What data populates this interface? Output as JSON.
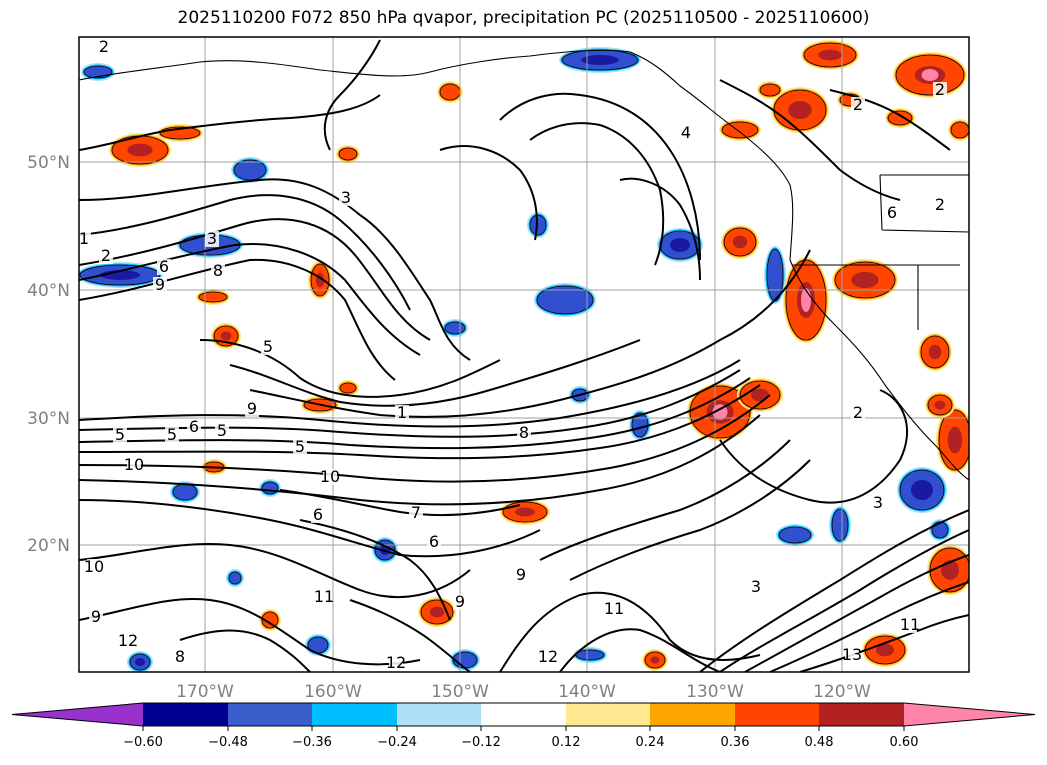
{
  "title": "2025110200 F072 850 hPa qvapor, precipitation PC (2025110500 - 2025110600)",
  "map": {
    "lat_labels": [
      "50°N",
      "40°N",
      "30°N",
      "20°N"
    ],
    "lon_labels": [
      "170°W",
      "160°W",
      "150°W",
      "140°W",
      "130°W",
      "120°W"
    ],
    "contour_labels": [
      "2",
      "3",
      "1",
      "2",
      "6",
      "8",
      "9",
      "5",
      "3",
      "1",
      "9",
      "8",
      "5",
      "5",
      "5",
      "6",
      "5",
      "10",
      "10",
      "6",
      "7",
      "6",
      "9",
      "9",
      "11",
      "10",
      "12",
      "8",
      "9",
      "12",
      "11",
      "3",
      "12",
      "11",
      "13",
      "2",
      "2",
      "4",
      "6",
      "2",
      "2",
      "3"
    ],
    "colors": {
      "negative": [
        "#1a1aa0",
        "#3050d0",
        "#00bfff",
        "#aee0fa"
      ],
      "positive": [
        "#ffe890",
        "#ffa500",
        "#ff4500",
        "#b22222",
        "#ff85a8"
      ]
    }
  },
  "colorbar": {
    "ticks": [
      "−0.60",
      "−0.48",
      "−0.36",
      "−0.24",
      "−0.12",
      "0.12",
      "0.24",
      "0.36",
      "0.48",
      "0.60"
    ],
    "colors": [
      "#9932cc",
      "#000090",
      "#3a5fcd",
      "#00bfff",
      "#aee0fa",
      "#ffffff",
      "#ffe890",
      "#ffa500",
      "#ff4500",
      "#b22222",
      "#ff85a8"
    ]
  }
}
